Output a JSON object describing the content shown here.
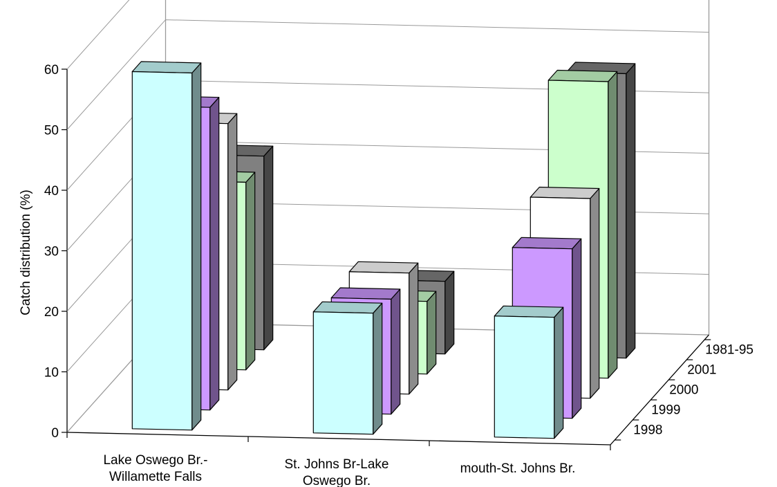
{
  "chart_data": {
    "type": "bar",
    "ylabel": "Catch distribution (%)",
    "ylim": [
      0,
      60
    ],
    "yticks": [
      0,
      10,
      20,
      30,
      40,
      50,
      60
    ],
    "grid": true,
    "categories": [
      [
        "Lake Oswego Br.-",
        "Willamette Falls"
      ],
      [
        "St. Johns Br-Lake",
        "Oswego Br."
      ],
      [
        "mouth-St. Johns Br."
      ]
    ],
    "series": [
      {
        "name": "1998",
        "color": "#ccffff",
        "values": [
          59,
          20,
          20
        ]
      },
      {
        "name": "1999",
        "color": "#cc99ff",
        "values": [
          50,
          19,
          28
        ]
      },
      {
        "name": "2000",
        "color": "#ffffff",
        "values": [
          44,
          20,
          33
        ]
      },
      {
        "name": "2001",
        "color": "#ccffcc",
        "values": [
          31,
          12,
          49
        ]
      },
      {
        "name": "1981-95",
        "color": "#808080",
        "values": [
          32,
          12,
          47
        ]
      }
    ]
  }
}
